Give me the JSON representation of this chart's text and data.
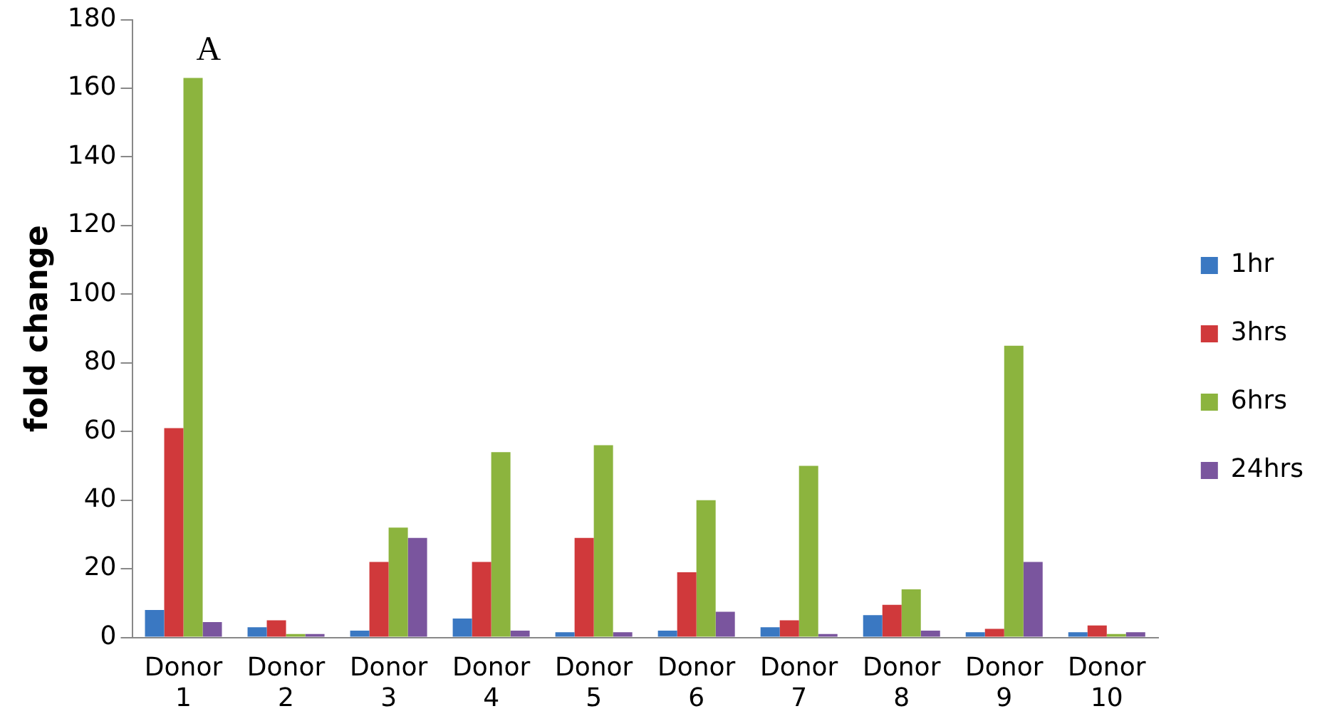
{
  "chart_data": {
    "type": "bar",
    "ylabel": "fold change",
    "annotations": [
      "A"
    ],
    "categories": [
      "Donor 1",
      "Donor 2",
      "Donor 3",
      "Donor 4",
      "Donor 5",
      "Donor 6",
      "Donor 7",
      "Donor 8",
      "Donor 9",
      "Donor 10"
    ],
    "series": [
      {
        "name": "1hr",
        "color": "#3a78c2",
        "values": [
          8,
          3,
          2,
          5.5,
          1.5,
          2,
          3,
          6.5,
          1.5,
          1.5
        ]
      },
      {
        "name": "3hrs",
        "color": "#d0393b",
        "values": [
          61,
          5,
          22,
          22,
          29,
          19,
          5,
          9.5,
          2.5,
          3.5
        ]
      },
      {
        "name": "6hrs",
        "color": "#8cb43e",
        "values": [
          163,
          1,
          32,
          54,
          56,
          40,
          50,
          14,
          85,
          1
        ]
      },
      {
        "name": "24hrs",
        "color": "#7a559e",
        "values": [
          4.5,
          1,
          29,
          2,
          1.5,
          7.5,
          1,
          2,
          22,
          1.5
        ]
      }
    ],
    "ylim": [
      0,
      180
    ],
    "yticks": [
      0,
      20,
      40,
      60,
      80,
      100,
      120,
      140,
      160,
      180
    ],
    "grid": false,
    "legend": "right"
  }
}
